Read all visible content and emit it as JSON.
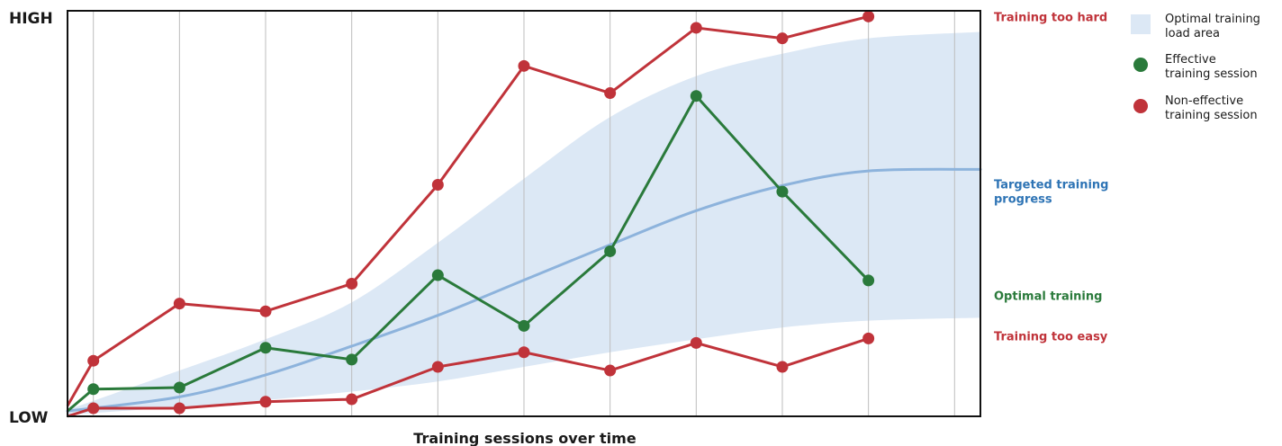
{
  "chart_data": {
    "type": "line",
    "title": "",
    "xlabel": "Training sessions over time",
    "ylabel": "",
    "y_tick_labels": {
      "high": "HIGH",
      "low": "LOW"
    },
    "x": [
      0,
      1,
      2,
      3,
      4,
      5,
      6,
      7,
      8,
      9,
      10
    ],
    "xlim": [
      -0.3,
      10.3
    ],
    "ylim": [
      0,
      100
    ],
    "grid": {
      "vertical": true,
      "horizontal": false
    },
    "series": [
      {
        "name": "Training too hard",
        "color": "#c0333a",
        "marker": "circle",
        "points": [
          [
            -0.3,
            2.6
          ],
          [
            0,
            13.7
          ],
          [
            1,
            27.8
          ],
          [
            2,
            25.9
          ],
          [
            3,
            32.7
          ],
          [
            4,
            57.1
          ],
          [
            5,
            86.4
          ],
          [
            6,
            79.7
          ],
          [
            7,
            95.8
          ],
          [
            8,
            93.2
          ],
          [
            9,
            98.6
          ]
        ]
      },
      {
        "name": "Targeted training progress",
        "color": "#8db3dc",
        "marker": "none",
        "points": [
          [
            -0.3,
            1.3
          ],
          [
            1,
            4.8
          ],
          [
            2,
            10.2
          ],
          [
            3,
            17.3
          ],
          [
            4,
            24.9
          ],
          [
            5,
            33.6
          ],
          [
            6,
            42.3
          ],
          [
            7,
            50.7
          ],
          [
            8,
            56.9
          ],
          [
            9,
            60.5
          ],
          [
            10.3,
            60.9
          ]
        ]
      },
      {
        "name": "Optimal training",
        "color": "#2a7a3b",
        "marker": "circle",
        "points": [
          [
            -0.3,
            1.3
          ],
          [
            0,
            6.7
          ],
          [
            1,
            7.1
          ],
          [
            2,
            16.9
          ],
          [
            3,
            14.0
          ],
          [
            4,
            34.8
          ],
          [
            5,
            22.3
          ],
          [
            6,
            40.7
          ],
          [
            7,
            79.0
          ],
          [
            8,
            55.4
          ],
          [
            9,
            33.5
          ]
        ]
      },
      {
        "name": "Training too easy",
        "color": "#c0333a",
        "marker": "circle",
        "points": [
          [
            -0.3,
            0.0
          ],
          [
            0,
            2.0
          ],
          [
            1,
            2.0
          ],
          [
            2,
            3.6
          ],
          [
            3,
            4.2
          ],
          [
            4,
            12.2
          ],
          [
            5,
            15.8
          ],
          [
            6,
            11.3
          ],
          [
            7,
            18.1
          ],
          [
            8,
            12.2
          ],
          [
            9,
            19.2
          ]
        ]
      }
    ],
    "band": {
      "name": "Optimal training load area",
      "color": "#dce8f5",
      "upper": [
        [
          -0.3,
          1.6
        ],
        [
          1,
          11.3
        ],
        [
          2,
          19.0
        ],
        [
          3,
          28.1
        ],
        [
          4,
          42.8
        ],
        [
          5,
          58.6
        ],
        [
          6,
          73.8
        ],
        [
          7,
          83.9
        ],
        [
          8,
          89.4
        ],
        [
          9,
          93.2
        ],
        [
          10.3,
          94.8
        ]
      ],
      "lower": [
        [
          -0.3,
          0.4
        ],
        [
          1,
          2.3
        ],
        [
          2,
          4.0
        ],
        [
          3,
          6.1
        ],
        [
          4,
          8.6
        ],
        [
          5,
          12.2
        ],
        [
          6,
          15.8
        ],
        [
          7,
          19.0
        ],
        [
          8,
          21.9
        ],
        [
          9,
          23.6
        ],
        [
          10.3,
          24.3
        ]
      ]
    },
    "annotations": [
      {
        "text": "Training too hard",
        "color": "#c0333a",
        "anchor_y": 98.6
      },
      {
        "lines": [
          "Targeted training",
          "progress"
        ],
        "color": "#2e74b5",
        "anchor_y": 55.5
      },
      {
        "text": "Optimal training",
        "color": "#2a7a3b",
        "anchor_y": 29.8
      },
      {
        "text": "Training too easy",
        "color": "#c0333a",
        "anchor_y": 19.9
      }
    ],
    "legend": {
      "placement": "right",
      "entries": [
        {
          "label_lines": [
            "Optimal training",
            "load area"
          ],
          "symbol": "square",
          "color": "#dce8f5"
        },
        {
          "label_lines": [
            "Effective",
            "training session"
          ],
          "symbol": "circle",
          "color": "#2a7a3b"
        },
        {
          "label_lines": [
            "Non-effective",
            "training session"
          ],
          "symbol": "circle",
          "color": "#c0333a"
        }
      ]
    }
  }
}
